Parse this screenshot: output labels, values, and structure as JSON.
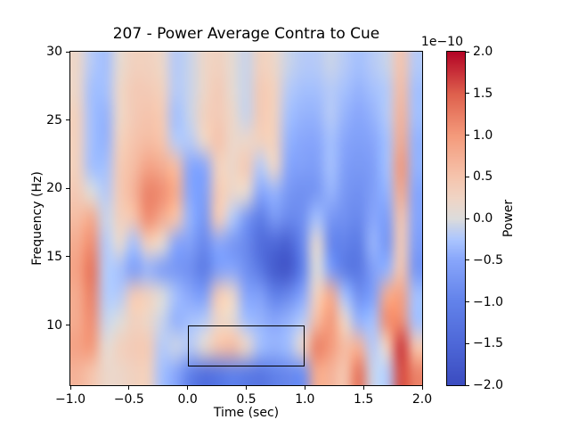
{
  "figure": {
    "background": "#ffffff",
    "text_color": "#000000"
  },
  "chart_data": {
    "type": "heatmap",
    "title": "207 - Power Average Contra to Cue",
    "xlabel": "Time (sec)",
    "ylabel": "Frequency (Hz)",
    "x_range": [
      -1.0,
      2.0
    ],
    "freq_range": [
      5.6,
      30.0
    ],
    "grid": false,
    "x_ticks": {
      "values": [
        -1.0,
        -0.5,
        0.0,
        0.5,
        1.0,
        1.5,
        2.0
      ],
      "labels": [
        "−1.0",
        "−0.5",
        "0.0",
        "0.5",
        "1.0",
        "1.5",
        "2.0"
      ]
    },
    "y_ticks": {
      "values": [
        10,
        15,
        20,
        25,
        30
      ],
      "labels": [
        "10",
        "15",
        "20",
        "25",
        "30"
      ]
    },
    "colorbar": {
      "label": "Power",
      "offset_text": "1e−10",
      "vmin": -2.0,
      "vmax": 2.0,
      "tick_values": [
        2.0,
        1.5,
        1.0,
        0.5,
        0.0,
        -0.5,
        -1.0,
        -1.5,
        -2.0
      ],
      "tick_labels": [
        "2.0",
        "1.5",
        "1.0",
        "0.5",
        "0.0",
        "−0.5",
        "−1.0",
        "−1.5",
        "−2.0"
      ]
    },
    "colormap": {
      "name": "coolwarm",
      "anchors": [
        {
          "pos": 0.0,
          "rgb": [
            59,
            76,
            192
          ]
        },
        {
          "pos": 0.125,
          "rgb": [
            78,
            104,
            216
          ]
        },
        {
          "pos": 0.25,
          "rgb": [
            98,
            130,
            234
          ]
        },
        {
          "pos": 0.375,
          "rgb": [
            136,
            166,
            251
          ]
        },
        {
          "pos": 0.4375,
          "rgb": [
            172,
            198,
            254
          ]
        },
        {
          "pos": 0.5,
          "rgb": [
            221,
            220,
            219
          ]
        },
        {
          "pos": 0.5625,
          "rgb": [
            240,
            212,
            196
          ]
        },
        {
          "pos": 0.625,
          "rgb": [
            245,
            196,
            173
          ]
        },
        {
          "pos": 0.75,
          "rgb": [
            244,
            154,
            123
          ]
        },
        {
          "pos": 0.875,
          "rgb": [
            222,
            96,
            77
          ]
        },
        {
          "pos": 1.0,
          "rgb": [
            180,
            4,
            38
          ]
        }
      ]
    },
    "annotation_box": {
      "t_start": 0.0,
      "t_end": 1.0,
      "f_start": 7.0,
      "f_end": 10.0,
      "color": "#000000"
    },
    "heatmap": {
      "unit_scale": "1e-10",
      "times": [
        -1.0,
        -0.875,
        -0.75,
        -0.625,
        -0.5,
        -0.375,
        -0.25,
        -0.125,
        0.0,
        0.125,
        0.25,
        0.375,
        0.5,
        0.625,
        0.75,
        0.875,
        1.0,
        1.125,
        1.25,
        1.375,
        1.5,
        1.625,
        1.75,
        1.875,
        2.0
      ],
      "freqs": [
        30,
        28,
        26,
        24,
        22,
        20,
        18,
        16,
        14,
        12,
        10,
        8,
        6
      ],
      "values": [
        [
          0.2,
          -0.2,
          -0.3,
          0.1,
          0.3,
          0.3,
          0.2,
          -0.2,
          -0.1,
          0.2,
          0.3,
          0.1,
          -0.1,
          0.3,
          0.2,
          -0.1,
          -0.2,
          -0.2,
          -0.1,
          -0.2,
          -0.3,
          -0.2,
          -0.1,
          0.5,
          -0.2
        ],
        [
          0.2,
          -0.3,
          -0.3,
          0.2,
          0.4,
          0.4,
          0.3,
          -0.2,
          -0.1,
          0.2,
          0.4,
          0.1,
          -0.1,
          0.4,
          0.3,
          -0.2,
          -0.3,
          -0.3,
          -0.2,
          -0.3,
          -0.4,
          -0.3,
          -0.2,
          0.6,
          -0.3
        ],
        [
          0.3,
          -0.3,
          -0.4,
          0.2,
          0.4,
          0.5,
          0.4,
          -0.3,
          -0.1,
          0.3,
          0.4,
          0.2,
          -0.1,
          0.4,
          0.3,
          -0.3,
          -0.4,
          -0.4,
          -0.2,
          -0.4,
          -0.5,
          -0.4,
          -0.2,
          0.7,
          -0.3
        ],
        [
          0.3,
          -0.3,
          -0.4,
          0.3,
          0.5,
          0.6,
          0.5,
          -0.2,
          -0.2,
          0.2,
          0.5,
          0.2,
          0.2,
          0.3,
          0.3,
          -0.4,
          -0.5,
          -0.5,
          -0.3,
          -0.5,
          -0.6,
          -0.5,
          -0.3,
          0.8,
          -0.4
        ],
        [
          0.3,
          -0.3,
          -0.3,
          0.4,
          0.6,
          0.9,
          0.8,
          0.6,
          -0.5,
          -0.5,
          0.3,
          0.2,
          0.4,
          -0.2,
          0.2,
          -0.5,
          -0.6,
          -0.6,
          -0.3,
          -0.6,
          -0.7,
          -0.6,
          -0.3,
          1.0,
          -0.4
        ],
        [
          0.4,
          0.0,
          -0.2,
          0.4,
          0.7,
          1.2,
          1.1,
          0.8,
          -0.5,
          -0.6,
          0.4,
          0.2,
          0.1,
          -0.5,
          -0.4,
          -0.7,
          -0.8,
          -0.7,
          -0.4,
          -0.7,
          -0.8,
          -0.6,
          -0.4,
          0.8,
          -0.5
        ],
        [
          0.6,
          0.8,
          -0.1,
          0.3,
          0.5,
          1.1,
          0.8,
          0.5,
          -0.4,
          -0.7,
          0.4,
          -0.2,
          -0.7,
          -1.1,
          -0.7,
          -0.9,
          -0.8,
          -0.3,
          -0.7,
          -0.8,
          -0.9,
          -0.5,
          -0.6,
          0.5,
          -0.5
        ],
        [
          0.8,
          1.1,
          -0.2,
          0.1,
          -0.3,
          0.3,
          0.1,
          -0.5,
          -0.6,
          -0.9,
          -0.5,
          -0.7,
          -0.9,
          -1.4,
          -1.5,
          -1.6,
          -0.9,
          0.1,
          -0.9,
          -1.0,
          -1.1,
          -0.4,
          -0.7,
          0.4,
          -0.6
        ],
        [
          0.9,
          1.3,
          -0.2,
          -0.3,
          -0.6,
          -0.4,
          -0.6,
          -0.7,
          -0.8,
          -1.1,
          -0.6,
          -0.5,
          -0.8,
          -1.2,
          -1.7,
          -1.8,
          -1.0,
          0.0,
          -0.6,
          -1.1,
          -1.2,
          -0.6,
          -0.4,
          0.5,
          -0.7
        ],
        [
          0.8,
          1.2,
          -0.2,
          -0.2,
          0.4,
          0.3,
          0.0,
          -0.3,
          -0.5,
          -0.6,
          0.4,
          0.2,
          -0.5,
          -0.6,
          -1.0,
          -0.9,
          -0.5,
          0.3,
          0.8,
          -0.3,
          -0.8,
          -0.6,
          0.8,
          0.9,
          -0.3
        ],
        [
          0.8,
          1.1,
          -0.1,
          0.0,
          0.3,
          0.2,
          -0.1,
          -0.4,
          -0.3,
          -0.2,
          0.2,
          0.1,
          -0.3,
          -0.4,
          -0.5,
          -0.4,
          -0.2,
          0.6,
          1.0,
          0.2,
          -0.4,
          -0.3,
          1.1,
          1.1,
          -0.3
        ],
        [
          0.9,
          1.0,
          0.1,
          0.3,
          0.4,
          0.4,
          -0.2,
          -0.1,
          -0.2,
          0.1,
          0.5,
          0.6,
          0.2,
          -0.3,
          -0.4,
          -0.3,
          0.2,
          1.2,
          1.0,
          0.6,
          0.7,
          -0.2,
          0.3,
          1.7,
          0.5
        ],
        [
          0.7,
          0.5,
          0.2,
          0.2,
          0.3,
          0.3,
          -0.3,
          -0.5,
          -1.0,
          -1.3,
          -1.2,
          -1.0,
          -1.1,
          -1.2,
          -1.0,
          -0.9,
          -0.8,
          0.8,
          0.7,
          0.5,
          1.3,
          -0.1,
          -0.2,
          1.6,
          1.2
        ]
      ]
    }
  }
}
